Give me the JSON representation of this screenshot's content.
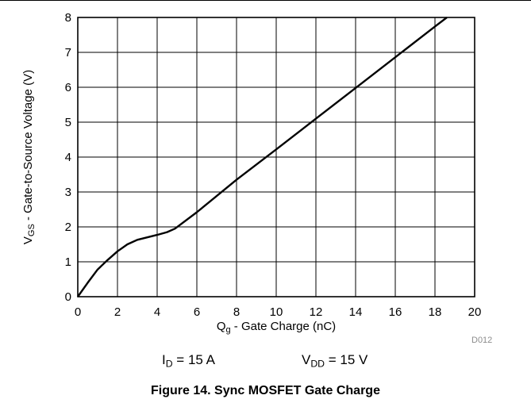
{
  "chart_data": {
    "type": "line",
    "title": "",
    "xlabel": {
      "main": "Q",
      "sub": "g",
      "rest": " - Gate Charge (nC)"
    },
    "ylabel": {
      "main": "V",
      "sub": "GS",
      "rest": " - Gate-to-Source Voltage (V)"
    },
    "xlim": [
      0,
      20
    ],
    "ylim": [
      0,
      8
    ],
    "xticks": [
      0,
      2,
      4,
      6,
      8,
      10,
      12,
      14,
      16,
      18,
      20
    ],
    "yticks": [
      0,
      1,
      2,
      3,
      4,
      5,
      6,
      7,
      8
    ],
    "grid": true,
    "series": [
      {
        "x": [
          0,
          0.5,
          1,
          1.5,
          2,
          2.5,
          3,
          3.5,
          4,
          4.5,
          4.9,
          6,
          8,
          10,
          12,
          14,
          16,
          18,
          18.6
        ],
        "y": [
          0,
          0.4,
          0.78,
          1.05,
          1.3,
          1.5,
          1.63,
          1.7,
          1.77,
          1.85,
          1.95,
          2.42,
          3.35,
          4.22,
          5.1,
          5.98,
          6.86,
          7.74,
          8.0
        ]
      }
    ],
    "annotations": {
      "id_main": "I",
      "id_sub": "D",
      "id_rest": " = 15 A",
      "vdd_main": "V",
      "vdd_sub": "DD",
      "vdd_rest": " = 15 V",
      "code": "D012"
    }
  },
  "figure_title": "Figure 14. Sync MOSFET Gate Charge"
}
